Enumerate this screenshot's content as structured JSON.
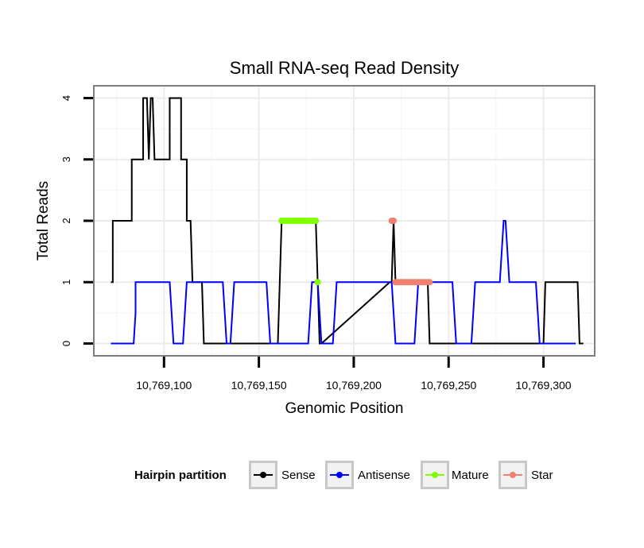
{
  "chart_data": {
    "type": "line",
    "title": "Small RNA-seq Read Density",
    "xlabel": "Genomic Position",
    "ylabel": "Total Reads",
    "xlim": [
      10769063,
      10769327
    ],
    "ylim": [
      -0.2,
      4.2
    ],
    "x_ticks": [
      10769100,
      10769150,
      10769200,
      10769250,
      10769300
    ],
    "x_tick_labels": [
      "10,769,100",
      "10,769,150",
      "10,769,200",
      "10,769,250",
      "10,769,300"
    ],
    "y_ticks": [
      0,
      1,
      2,
      3,
      4
    ],
    "y_tick_labels": [
      "0",
      "1",
      "2",
      "3",
      "4"
    ],
    "grid": true,
    "legend": {
      "title": "Hairpin partition",
      "position": "bottom",
      "entries": [
        "Sense",
        "Antisense",
        "Mature",
        "Star"
      ]
    },
    "series": [
      {
        "name": "Sense",
        "color": "#000000",
        "style": "line",
        "x": [
          10769072,
          10769073,
          10769073,
          10769074,
          10769082,
          10769083,
          10769083,
          10769084,
          10769088,
          10769089,
          10769089,
          10769090,
          10769091,
          10769092,
          10769093,
          10769094,
          10769095,
          10769096,
          10769096,
          10769097,
          10769102,
          10769103,
          10769103,
          10769104,
          10769108,
          10769109,
          10769109,
          10769110,
          10769111,
          10769112,
          10769112,
          10769113,
          10769114,
          10769115,
          10769116,
          10769117,
          10769119,
          10769120,
          10769121,
          10769122,
          10769160,
          10769161,
          10769162,
          10769164,
          10769180,
          10769181,
          10769182,
          10769183,
          10769219,
          10769220,
          10769221,
          10769222,
          10769238,
          10769239,
          10769240,
          10769241,
          10769299,
          10769300,
          10769301,
          10769317,
          10769318,
          10769319,
          10769321
        ],
        "values": [
          1,
          1,
          2,
          2,
          2,
          2,
          3,
          3,
          3,
          3,
          4,
          4,
          4,
          3,
          4,
          4,
          3,
          3,
          3,
          3,
          3,
          3,
          4,
          4,
          4,
          4,
          3,
          3,
          3,
          3,
          2,
          2,
          2,
          1,
          1,
          1,
          1,
          1,
          0,
          0,
          0,
          1,
          2,
          2,
          2,
          1,
          0,
          0,
          1,
          1,
          2,
          1,
          1,
          1,
          0,
          0,
          0,
          0,
          1,
          1,
          1,
          0,
          0
        ]
      },
      {
        "name": "Antisense",
        "color": "#0000ff",
        "style": "line",
        "x": [
          10769072,
          10769084,
          10769085,
          10769085,
          10769103,
          10769104,
          10769105,
          10769110,
          10769111,
          10769112,
          10769120,
          10769121,
          10769122,
          10769131,
          10769132,
          10769133,
          10769135,
          10769136,
          10769137,
          10769154,
          10769155,
          10769156,
          10769176,
          10769177,
          10769178,
          10769178,
          10769181,
          10769182,
          10769183,
          10769189,
          10769190,
          10769191,
          10769199,
          10769200,
          10769201,
          10769210,
          10769211,
          10769212,
          10769220,
          10769221,
          10769222,
          10769232,
          10769233,
          10769234,
          10769252,
          10769253,
          10769254,
          10769262,
          10769263,
          10769264,
          10769277,
          10769278,
          10769279,
          10769280,
          10769281,
          10769282,
          10769296,
          10769297,
          10769298,
          10769317
        ],
        "values": [
          0,
          0,
          0.5,
          1,
          1,
          0.5,
          0,
          0,
          0.5,
          1,
          1,
          1,
          1,
          1,
          0.5,
          0,
          0,
          0.5,
          1,
          1,
          0.5,
          0,
          0,
          0.5,
          1,
          1,
          1,
          0.5,
          0,
          0,
          0.5,
          1,
          1,
          1,
          1,
          1,
          1,
          1,
          1,
          0.5,
          0,
          0,
          0.5,
          1,
          1,
          0.5,
          0,
          0,
          0.5,
          1,
          1,
          1.5,
          2,
          2,
          1.5,
          1,
          1,
          0.5,
          0,
          0
        ]
      },
      {
        "name": "Mature",
        "color": "#80ff00",
        "style": "points",
        "x": [
          10769162,
          10769163,
          10769164,
          10769165,
          10769166,
          10769167,
          10769168,
          10769169,
          10769170,
          10769171,
          10769172,
          10769173,
          10769174,
          10769175,
          10769176,
          10769177,
          10769178,
          10769179,
          10769180,
          10769181
        ],
        "values": [
          2,
          2,
          2,
          2,
          2,
          2,
          2,
          2,
          2,
          2,
          2,
          2,
          2,
          2,
          2,
          2,
          2,
          2,
          2,
          1
        ]
      },
      {
        "name": "Star",
        "color": "#f08070",
        "style": "points",
        "x": [
          10769220,
          10769221,
          10769222,
          10769223,
          10769224,
          10769225,
          10769226,
          10769227,
          10769228,
          10769229,
          10769230,
          10769231,
          10769232,
          10769233,
          10769234,
          10769235,
          10769236,
          10769237,
          10769238,
          10769239,
          10769240
        ],
        "values": [
          2,
          2,
          1,
          1,
          1,
          1,
          1,
          1,
          1,
          1,
          1,
          1,
          1,
          1,
          1,
          1,
          1,
          1,
          1,
          1,
          1
        ]
      }
    ]
  }
}
